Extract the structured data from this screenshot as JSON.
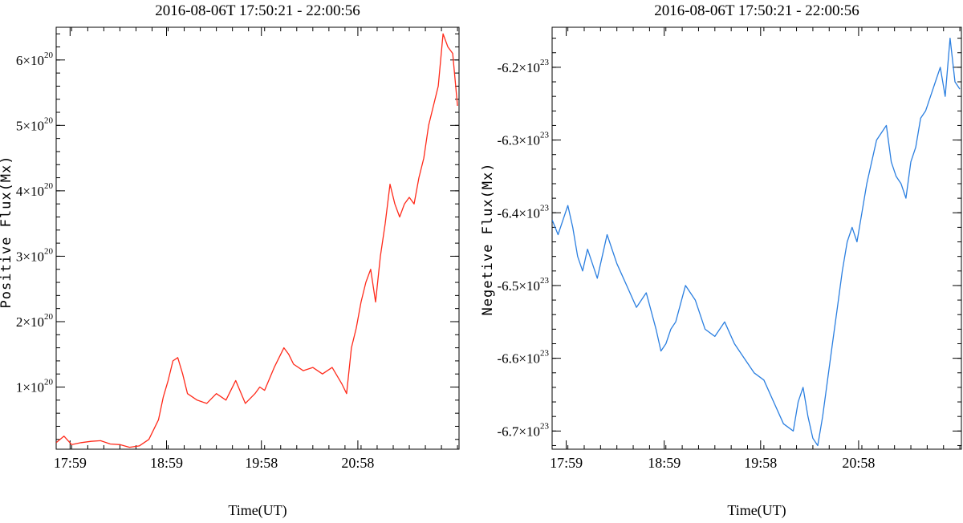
{
  "chart_data": [
    {
      "type": "line",
      "title": "2016-08-06T 17:50:21 - 22:00:56",
      "xlabel": "Time(UT)",
      "ylabel": "Positive Flux(Mx)",
      "color": "#ff2a1a",
      "x_tick_labels": [
        "17:59",
        "18:59",
        "19:58",
        "20:58"
      ],
      "x_tick_values": [
        17.9833,
        18.9833,
        19.9667,
        20.9667
      ],
      "xlim": [
        17.8392,
        22.0156
      ],
      "y_tick_labels": [
        {
          "mantissa": "1",
          "exponent": "20",
          "value": 1e+20
        },
        {
          "mantissa": "2",
          "exponent": "20",
          "value": 2e+20
        },
        {
          "mantissa": "3",
          "exponent": "20",
          "value": 3e+20
        },
        {
          "mantissa": "4",
          "exponent": "20",
          "value": 4e+20
        },
        {
          "mantissa": "5",
          "exponent": "20",
          "value": 5e+20
        },
        {
          "mantissa": "6",
          "exponent": "20",
          "value": 6e+20
        }
      ],
      "ylim": [
        5e+18,
        6.5e+20
      ],
      "series": [
        {
          "x": [
            17.84,
            17.92,
            18.0,
            18.1,
            18.2,
            18.3,
            18.4,
            18.5,
            18.6,
            18.7,
            18.8,
            18.9,
            18.95,
            19.0,
            19.05,
            19.1,
            19.15,
            19.2,
            19.3,
            19.4,
            19.5,
            19.6,
            19.7,
            19.8,
            19.9,
            19.95,
            20.0,
            20.1,
            20.2,
            20.25,
            20.3,
            20.4,
            20.5,
            20.6,
            20.7,
            20.8,
            20.85,
            20.9,
            20.95,
            21.0,
            21.05,
            21.1,
            21.15,
            21.2,
            21.25,
            21.3,
            21.35,
            21.4,
            21.45,
            21.5,
            21.55,
            21.6,
            21.65,
            21.7,
            21.75,
            21.8,
            21.85,
            21.9,
            21.95,
            22.0
          ],
          "y": [
            1.5e+19,
            2.5e+19,
            1.2e+19,
            1.5e+19,
            1.7e+19,
            1.8e+19,
            1.3e+19,
            1.2e+19,
            8e+18,
            1e+19,
            2e+19,
            5e+19,
            8.5e+19,
            1.1e+20,
            1.4e+20,
            1.45e+20,
            1.2e+20,
            9e+19,
            8e+19,
            7.5e+19,
            9e+19,
            8e+19,
            1.1e+20,
            7.5e+19,
            9e+19,
            1e+20,
            9.5e+19,
            1.3e+20,
            1.6e+20,
            1.5e+20,
            1.35e+20,
            1.25e+20,
            1.3e+20,
            1.2e+20,
            1.3e+20,
            1.05e+20,
            9e+19,
            1.6e+20,
            1.9e+20,
            2.3e+20,
            2.6e+20,
            2.8e+20,
            2.3e+20,
            3e+20,
            3.5e+20,
            4.1e+20,
            3.8e+20,
            3.6e+20,
            3.8e+20,
            3.9e+20,
            3.8e+20,
            4.2e+20,
            4.5e+20,
            5e+20,
            5.3e+20,
            5.6e+20,
            6.4e+20,
            6.2e+20,
            6.1e+20,
            5.3e+20
          ]
        }
      ]
    },
    {
      "type": "line",
      "title": "2016-08-06T 17:50:21 - 22:00:56",
      "xlabel": "Time(UT)",
      "ylabel": "Negetive Flux(Mx)",
      "color": "#2b7fe0",
      "x_tick_labels": [
        "17:59",
        "18:59",
        "19:58",
        "20:58"
      ],
      "x_tick_values": [
        17.9833,
        18.9833,
        19.9667,
        20.9667
      ],
      "xlim": [
        17.8392,
        22.0156
      ],
      "y_tick_labels": [
        {
          "mantissa": "-6.2",
          "exponent": "23",
          "value": -6.2e+23
        },
        {
          "mantissa": "-6.3",
          "exponent": "23",
          "value": -6.3e+23
        },
        {
          "mantissa": "-6.4",
          "exponent": "23",
          "value": -6.4e+23
        },
        {
          "mantissa": "-6.5",
          "exponent": "23",
          "value": -6.5e+23
        },
        {
          "mantissa": "-6.6",
          "exponent": "23",
          "value": -6.6e+23
        },
        {
          "mantissa": "-6.7",
          "exponent": "23",
          "value": -6.7e+23
        }
      ],
      "ylim": [
        -6.725e+23,
        -6.145e+23
      ],
      "series": [
        {
          "x": [
            17.84,
            17.9,
            18.0,
            18.05,
            18.1,
            18.15,
            18.2,
            18.25,
            18.3,
            18.35,
            18.4,
            18.5,
            18.6,
            18.7,
            18.8,
            18.9,
            18.95,
            19.0,
            19.05,
            19.1,
            19.2,
            19.3,
            19.4,
            19.5,
            19.6,
            19.7,
            19.8,
            19.9,
            20.0,
            20.1,
            20.2,
            20.3,
            20.35,
            20.4,
            20.45,
            20.5,
            20.55,
            20.6,
            20.65,
            20.7,
            20.75,
            20.8,
            20.85,
            20.9,
            20.95,
            21.0,
            21.05,
            21.1,
            21.15,
            21.2,
            21.25,
            21.3,
            21.35,
            21.4,
            21.45,
            21.5,
            21.55,
            21.6,
            21.65,
            21.7,
            21.75,
            21.8,
            21.85,
            21.9,
            21.95,
            22.0
          ],
          "y": [
            -6.41e+23,
            -6.43e+23,
            -6.39e+23,
            -6.42e+23,
            -6.46e+23,
            -6.48e+23,
            -6.45e+23,
            -6.47e+23,
            -6.49e+23,
            -6.46e+23,
            -6.43e+23,
            -6.47e+23,
            -6.5e+23,
            -6.53e+23,
            -6.51e+23,
            -6.56e+23,
            -6.59e+23,
            -6.58e+23,
            -6.56e+23,
            -6.55e+23,
            -6.5e+23,
            -6.52e+23,
            -6.56e+23,
            -6.57e+23,
            -6.55e+23,
            -6.58e+23,
            -6.6e+23,
            -6.62e+23,
            -6.63e+23,
            -6.66e+23,
            -6.69e+23,
            -6.7e+23,
            -6.66e+23,
            -6.64e+23,
            -6.68e+23,
            -6.71e+23,
            -6.72e+23,
            -6.68e+23,
            -6.63e+23,
            -6.58e+23,
            -6.53e+23,
            -6.48e+23,
            -6.44e+23,
            -6.42e+23,
            -6.44e+23,
            -6.4e+23,
            -6.36e+23,
            -6.33e+23,
            -6.3e+23,
            -6.29e+23,
            -6.28e+23,
            -6.33e+23,
            -6.35e+23,
            -6.36e+23,
            -6.38e+23,
            -6.33e+23,
            -6.31e+23,
            -6.27e+23,
            -6.26e+23,
            -6.24e+23,
            -6.22e+23,
            -6.2e+23,
            -6.24e+23,
            -6.16e+23,
            -6.22e+23,
            -6.23e+23
          ]
        }
      ]
    }
  ]
}
